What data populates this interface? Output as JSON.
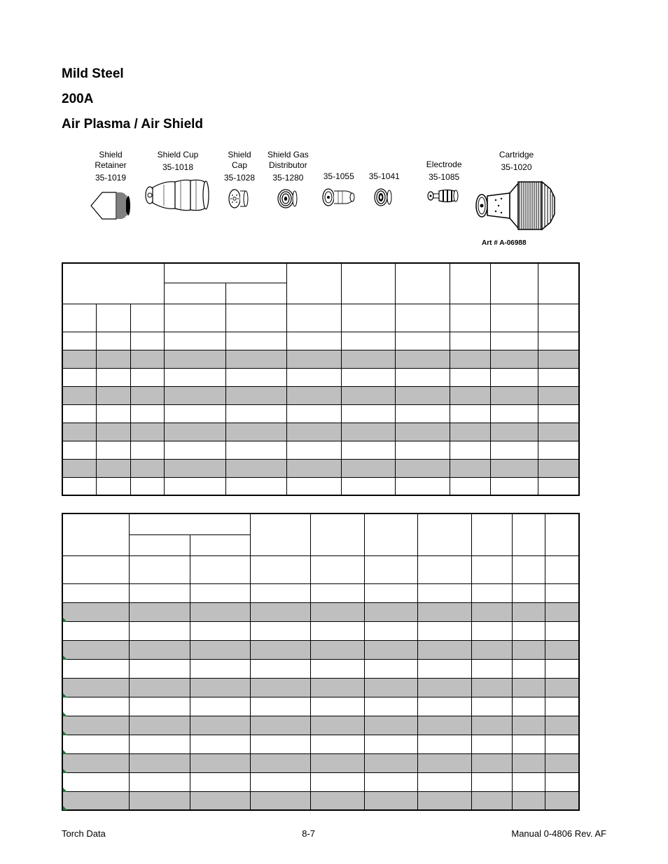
{
  "heading": {
    "line1": "Mild Steel",
    "line2": "200A",
    "line3": "Air Plasma / Air Shield"
  },
  "parts": [
    {
      "label": "Shield\nRetainer",
      "number": "35-1019",
      "icon": "shield-retainer"
    },
    {
      "label": "Shield Cup",
      "number": "35-1018",
      "icon": "shield-cup"
    },
    {
      "label": "Shield\nCap",
      "number": "35-1028",
      "icon": "shield-cap"
    },
    {
      "label": "Shield Gas\nDistributor",
      "number": "35-1280",
      "icon": "shield-gas-distributor"
    },
    {
      "label": "",
      "number": "35-1055",
      "icon": "tip-a"
    },
    {
      "label": "",
      "number": "35-1041",
      "icon": "tip-b"
    },
    {
      "label": "Electrode",
      "number": "35-1085",
      "icon": "electrode"
    },
    {
      "label": "Cartridge",
      "number": "35-1020",
      "icon": "cartridge"
    }
  ],
  "art_number": "Art # A-06988",
  "table1": {
    "cols": [
      50,
      50,
      50,
      90,
      90,
      80,
      80,
      80,
      60,
      70,
      60
    ],
    "header_rows": 3,
    "data_rows": 9
  },
  "table2": {
    "cols": [
      100,
      90,
      90,
      90,
      80,
      80,
      80,
      60,
      50,
      50
    ],
    "header_rows": 2,
    "data_rows": 12,
    "tick_rows": [
      1,
      3,
      5,
      6,
      7,
      8,
      9,
      10,
      11
    ]
  },
  "footer": {
    "left": "Torch Data",
    "center": "8-7",
    "right": "Manual  0-4806 Rev. AF"
  }
}
